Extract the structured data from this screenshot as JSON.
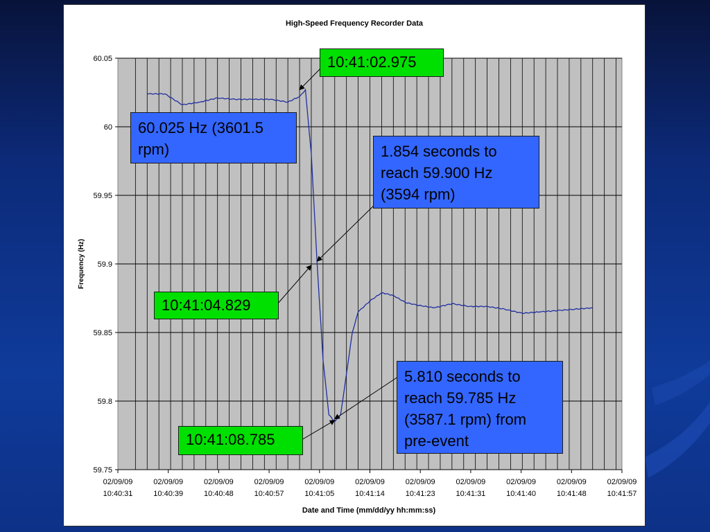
{
  "colors": {
    "plot_background": "#c0c0c0",
    "series_line": "#1f2ea0",
    "callout_green": "#00e000",
    "callout_blue": "#3366ff"
  },
  "chart_data": {
    "type": "line",
    "title": "High-Speed Frequency Recorder Data",
    "xlabel": "Date and Time (mm/dd/yy hh:mm:ss)",
    "ylabel": "Frequency (Hz)",
    "ylim": [
      59.75,
      60.05
    ],
    "y_ticks": [
      "60.05",
      "60",
      "59.95",
      "59.9",
      "59.85",
      "59.8",
      "59.75"
    ],
    "x_tick_labels": [
      [
        "02/09/09",
        "10:40:31"
      ],
      [
        "02/09/09",
        "10:40:39"
      ],
      [
        "02/09/09",
        "10:40:48"
      ],
      [
        "02/09/09",
        "10:40:57"
      ],
      [
        "02/09/09",
        "10:41:05"
      ],
      [
        "02/09/09",
        "10:41:14"
      ],
      [
        "02/09/09",
        "10:41:23"
      ],
      [
        "02/09/09",
        "10:41:31"
      ],
      [
        "02/09/09",
        "10:41:40"
      ],
      [
        "02/09/09",
        "10:41:48"
      ],
      [
        "02/09/09",
        "10:41:57"
      ]
    ],
    "xlim": [
      "10:40:31",
      "10:41:57"
    ],
    "grid": true,
    "series": [
      {
        "x": [
          "10:40:36",
          "10:40:39",
          "10:40:42",
          "10:40:45",
          "10:40:48",
          "10:40:51",
          "10:40:54",
          "10:40:57",
          "10:41:00",
          "10:41:02",
          "10:41:03",
          "10:41:04",
          "10:41:05",
          "10:41:06",
          "10:41:07",
          "10:41:08",
          "10:41:09",
          "10:41:10",
          "10:41:11",
          "10:41:12",
          "10:41:14",
          "10:41:16",
          "10:41:18",
          "10:41:20",
          "10:41:22",
          "10:41:25",
          "10:41:28",
          "10:41:31",
          "10:41:34",
          "10:41:37",
          "10:41:40",
          "10:41:43",
          "10:41:46",
          "10:41:49",
          "10:41:52"
        ],
        "y": [
          60.024,
          60.024,
          60.016,
          60.018,
          60.021,
          60.02,
          60.02,
          60.02,
          60.018,
          60.022,
          60.027,
          59.98,
          59.9,
          59.83,
          59.79,
          59.785,
          59.79,
          59.82,
          59.85,
          59.865,
          59.873,
          59.879,
          59.877,
          59.872,
          59.87,
          59.868,
          59.871,
          59.869,
          59.869,
          59.867,
          59.864,
          59.865,
          59.866,
          59.867,
          59.868
        ]
      }
    ],
    "annotations": [
      {
        "id": "t1",
        "text": "10:41:02.975",
        "style": "green",
        "x": "10:41:02",
        "y": 60.027
      },
      {
        "id": "hz1",
        "text": "60.025 Hz (3601.5 rpm)",
        "style": "blue"
      },
      {
        "id": "s1",
        "text": "1.854 seconds to reach 59.900 Hz (3594 rpm)",
        "style": "blue",
        "x": "10:41:05",
        "y": 59.902
      },
      {
        "id": "t2",
        "text": "10:41:04.829",
        "style": "green",
        "x": "10:41:04",
        "y": 59.899
      },
      {
        "id": "s2",
        "text": "5.810 seconds to reach 59.785 Hz (3587.1 rpm) from pre-event",
        "style": "blue",
        "x": "10:41:08",
        "y": 59.787
      },
      {
        "id": "t3",
        "text": "10:41:08.785",
        "style": "green",
        "x": "10:41:08",
        "y": 59.786
      }
    ]
  }
}
